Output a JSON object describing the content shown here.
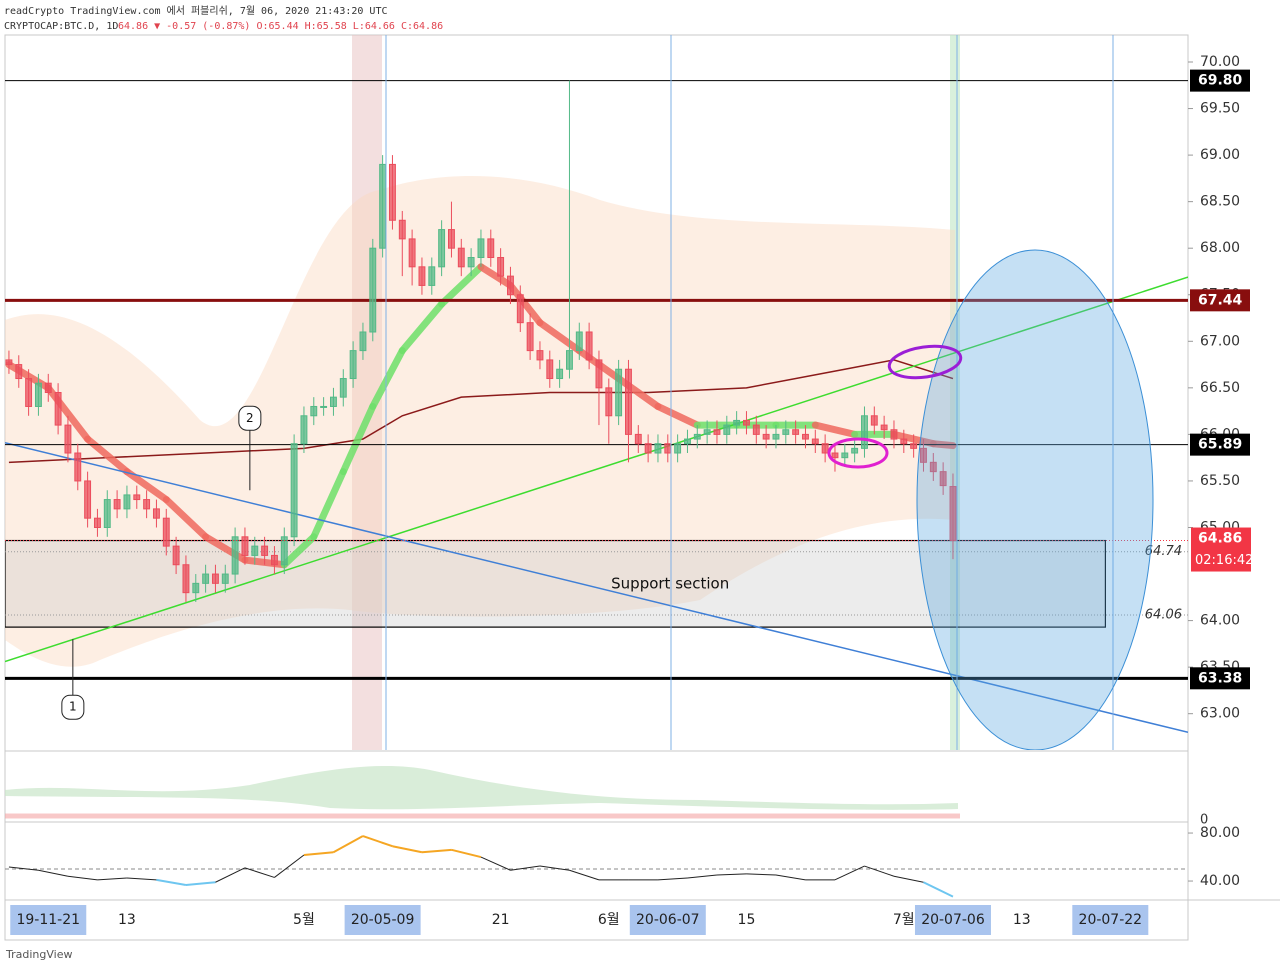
{
  "chart_data": {
    "type": "candlestick",
    "header": {
      "line1": "readCrypto TradingView.com 에서 퍼블리쉬, 7월 06, 2020 21:43:20 UTC",
      "symbol": "CRYPTOCAP:BTC.D, 1D",
      "quote": "64.86 ▼ -0.57 (-0.87%) O:65.44 H:65.58 L:64.66 C:64.86"
    },
    "open": [
      66.8,
      66.75,
      66.6,
      66.3,
      66.55,
      66.45,
      66.1,
      65.8,
      65.5,
      65.1,
      65.0,
      65.3,
      65.2,
      65.35,
      65.3,
      65.2,
      65.1,
      64.8,
      64.6,
      64.3,
      64.4,
      64.5,
      64.4,
      64.5,
      64.9,
      64.7,
      64.8,
      64.7,
      64.6,
      64.9,
      65.9,
      66.2,
      66.3,
      66.3,
      66.4,
      66.6,
      66.9,
      67.1,
      68.0,
      68.9,
      68.3,
      68.1,
      67.8,
      67.6,
      67.8,
      68.2,
      68.0,
      67.8,
      67.9,
      68.1,
      67.9,
      67.7,
      67.5,
      67.2,
      66.9,
      66.8,
      66.6,
      66.7,
      66.9,
      67.1,
      66.8,
      66.5,
      66.2,
      66.7,
      66.0,
      65.9,
      65.8,
      65.9,
      65.8,
      65.9,
      65.95,
      66.0,
      66.05,
      66.0,
      66.1,
      66.15,
      66.1,
      66.0,
      65.95,
      66.0,
      66.05,
      66.0,
      65.95,
      65.9,
      65.8,
      65.75,
      65.8,
      65.85,
      66.2,
      66.1,
      66.05,
      65.95,
      65.9,
      65.85,
      65.7,
      65.6,
      65.44
    ],
    "high": [
      66.9,
      66.85,
      66.7,
      66.65,
      66.65,
      66.55,
      66.2,
      65.9,
      65.6,
      65.2,
      65.4,
      65.4,
      65.45,
      65.45,
      65.4,
      65.3,
      65.2,
      64.9,
      64.7,
      64.5,
      64.6,
      64.6,
      64.6,
      65.0,
      65.0,
      64.9,
      64.9,
      64.8,
      65.0,
      66.0,
      66.3,
      66.4,
      66.4,
      66.5,
      66.7,
      67.0,
      67.2,
      68.1,
      69.0,
      69.0,
      68.4,
      68.2,
      67.9,
      67.9,
      68.3,
      68.5,
      68.1,
      68.0,
      68.2,
      68.2,
      68.0,
      67.8,
      67.6,
      67.3,
      67.0,
      66.9,
      66.8,
      69.8,
      67.2,
      67.2,
      66.9,
      66.6,
      66.8,
      66.8,
      66.1,
      66.0,
      66.0,
      66.0,
      66.0,
      66.05,
      66.1,
      66.15,
      66.15,
      66.2,
      66.25,
      66.25,
      66.2,
      66.1,
      66.1,
      66.15,
      66.15,
      66.1,
      66.05,
      66.0,
      65.9,
      65.9,
      65.95,
      66.3,
      66.3,
      66.2,
      66.15,
      66.05,
      66.0,
      65.95,
      65.8,
      65.7,
      65.58
    ],
    "low": [
      66.65,
      66.5,
      66.2,
      66.2,
      66.35,
      66.0,
      65.7,
      65.4,
      65.0,
      64.9,
      64.9,
      65.1,
      65.1,
      65.2,
      65.1,
      65.0,
      64.7,
      64.5,
      64.2,
      64.2,
      64.3,
      64.3,
      64.3,
      64.4,
      64.6,
      64.6,
      64.6,
      64.5,
      64.5,
      64.8,
      65.8,
      66.1,
      66.2,
      66.2,
      66.3,
      66.5,
      66.8,
      67.0,
      67.9,
      68.2,
      67.7,
      67.6,
      67.5,
      67.5,
      67.7,
      67.9,
      67.7,
      67.7,
      67.8,
      67.8,
      67.6,
      67.4,
      67.1,
      66.8,
      66.7,
      66.5,
      66.5,
      66.6,
      66.8,
      66.7,
      66.1,
      65.9,
      66.1,
      65.7,
      65.8,
      65.7,
      65.7,
      65.7,
      65.7,
      65.8,
      65.85,
      65.9,
      65.9,
      65.9,
      66.0,
      66.0,
      65.9,
      65.85,
      65.85,
      65.9,
      65.9,
      65.85,
      65.8,
      65.7,
      65.6,
      65.65,
      65.7,
      65.75,
      66.0,
      65.95,
      65.85,
      65.8,
      65.75,
      65.6,
      65.5,
      65.35,
      64.66
    ],
    "close": [
      66.75,
      66.6,
      66.3,
      66.55,
      66.45,
      66.1,
      65.8,
      65.5,
      65.1,
      65.0,
      65.3,
      65.2,
      65.35,
      65.3,
      65.2,
      65.1,
      64.8,
      64.6,
      64.3,
      64.4,
      64.5,
      64.4,
      64.5,
      64.9,
      64.7,
      64.8,
      64.7,
      64.6,
      64.9,
      65.9,
      66.2,
      66.3,
      66.3,
      66.4,
      66.6,
      66.9,
      67.1,
      68.0,
      68.9,
      68.3,
      68.1,
      67.8,
      67.6,
      67.8,
      68.2,
      68.0,
      67.8,
      67.9,
      68.1,
      67.9,
      67.7,
      67.5,
      67.2,
      66.9,
      66.8,
      66.6,
      66.7,
      66.9,
      67.1,
      66.8,
      66.5,
      66.2,
      66.7,
      66.0,
      65.9,
      65.8,
      65.9,
      65.8,
      65.9,
      65.95,
      66.0,
      66.05,
      66.0,
      66.1,
      66.15,
      66.1,
      66.0,
      65.95,
      66.0,
      66.05,
      66.0,
      65.95,
      65.9,
      65.8,
      65.75,
      65.8,
      65.85,
      66.2,
      66.1,
      66.05,
      65.95,
      65.9,
      65.85,
      65.7,
      65.6,
      65.45,
      64.86
    ],
    "up_color": "#53b987",
    "down_color": "#eb4d5c",
    "xlim": [
      -0.4,
      119.9
    ],
    "xticks": [
      {
        "value": 4,
        "label": "19-11-21"
      },
      {
        "value": 12,
        "label": "13"
      },
      {
        "value": 30,
        "label": "5월"
      },
      {
        "value": 38,
        "label": "20-05-09"
      },
      {
        "value": 50,
        "label": "21"
      },
      {
        "value": 61,
        "label": "6월"
      },
      {
        "value": 67,
        "label": "20-06-07"
      },
      {
        "value": 75,
        "label": "15"
      },
      {
        "value": 91,
        "label": "7월"
      },
      {
        "value": 96,
        "label": "20-07-06"
      },
      {
        "value": 103,
        "label": "13"
      },
      {
        "value": 112,
        "label": "20-07-22"
      }
    ],
    "ylim": [
      62.61,
      70.29
    ],
    "yticks": [
      {
        "value": 63,
        "label": "63.00"
      },
      {
        "value": 63.5,
        "label": "63.50"
      },
      {
        "value": 64,
        "label": "64.00"
      },
      {
        "value": 65,
        "label": "65.00"
      },
      {
        "value": 65.5,
        "label": "65.50"
      },
      {
        "value": 66,
        "label": "66.00"
      },
      {
        "value": 66.5,
        "label": "66.50"
      },
      {
        "value": 67,
        "label": "67.00"
      },
      {
        "value": 67.5,
        "label": "67.50"
      },
      {
        "value": 68,
        "label": "68.00"
      },
      {
        "value": 68.5,
        "label": "68.50"
      },
      {
        "value": 69,
        "label": "69.00"
      },
      {
        "value": 69.5,
        "label": "69.50"
      },
      {
        "value": 70,
        "label": "70.00"
      }
    ],
    "levels": [
      {
        "value": 69.8,
        "label": "69.80",
        "color": "#000000",
        "width": 1
      },
      {
        "value": 67.44,
        "label": "67.44",
        "color": "#880e0e",
        "width": 3
      },
      {
        "value": 65.89,
        "label": "65.89",
        "color": "#000000",
        "width": 1
      },
      {
        "value": 63.38,
        "label": "63.38",
        "color": "#000000",
        "width": 3
      }
    ],
    "last": {
      "value": 64.86,
      "label": "64.86",
      "countdown": "02:16:42",
      "color": "#f23645"
    },
    "support": {
      "label": "Support section",
      "top": 64.86,
      "bottom": 63.93,
      "x": [
        -0.4,
        111.5
      ],
      "lines": [
        {
          "value": 64.74,
          "label": "64.74"
        },
        {
          "value": 64.06,
          "label": "64.06"
        }
      ]
    },
    "trendlines": [
      {
        "color": "#3ddc2f",
        "x": [
          -0.4,
          119.9
        ],
        "y": [
          63.56,
          67.69
        ]
      },
      {
        "color": "#3f7fd6",
        "x": [
          -0.4,
          119.9
        ],
        "y": [
          65.91,
          62.8
        ]
      }
    ],
    "ma_fast": {
      "rise_color": "#6ee06a",
      "fall_color": "#f06a5f",
      "x": [
        0,
        4,
        8,
        12,
        16,
        20,
        24,
        28,
        31,
        34,
        37,
        40,
        44,
        48,
        51,
        54,
        58,
        62,
        66,
        70,
        74,
        78,
        82,
        86,
        90,
        94,
        96
      ],
      "values": [
        66.75,
        66.5,
        65.95,
        65.6,
        65.3,
        64.9,
        64.65,
        64.6,
        64.9,
        65.6,
        66.3,
        66.9,
        67.4,
        67.8,
        67.6,
        67.2,
        66.9,
        66.6,
        66.3,
        66.1,
        66.1,
        66.1,
        66.1,
        66.0,
        66.0,
        65.9,
        65.88
      ]
    },
    "ma_slow": {
      "color": "#8b1a1a",
      "x": [
        0,
        10,
        20,
        30,
        36,
        40,
        46,
        55,
        65,
        75,
        85,
        90,
        96
      ],
      "values": [
        65.7,
        65.75,
        65.8,
        65.85,
        65.95,
        66.2,
        66.4,
        66.45,
        66.45,
        66.5,
        66.7,
        66.8,
        66.6
      ]
    },
    "annotations": [
      {
        "text": "1",
        "x": 6.5,
        "y": 63.8,
        "placement": "below"
      },
      {
        "text": "2",
        "x": 24.5,
        "y": 65.4,
        "placement": "above"
      }
    ],
    "osc": {
      "yticks": [
        0
      ]
    },
    "rsi": {
      "x": [
        0,
        3,
        6,
        9,
        12,
        15,
        18,
        21,
        24,
        27,
        30,
        33,
        36,
        39,
        42,
        45,
        48,
        51,
        54,
        57,
        60,
        63,
        66,
        69,
        72,
        75,
        78,
        81,
        84,
        87,
        90,
        93,
        96
      ],
      "values": [
        51.7,
        49,
        44,
        41,
        42.5,
        41,
        36.7,
        39,
        51,
        43,
        61.7,
        64,
        77.5,
        69,
        64,
        66,
        60,
        49,
        52.5,
        49,
        41,
        41,
        41,
        42.5,
        45,
        46,
        45,
        41,
        41,
        52.5,
        44,
        39,
        27
      ],
      "ylim": [
        24.2,
        89.2
      ],
      "yticks": [
        {
          "value": 80,
          "label": "80.00"
        },
        {
          "value": 40,
          "label": "40.00"
        }
      ],
      "midline": 50,
      "color": "#222222",
      "high_color": "#f5a623",
      "low_color": "#6ec6f0"
    },
    "footer": "TradingView"
  }
}
